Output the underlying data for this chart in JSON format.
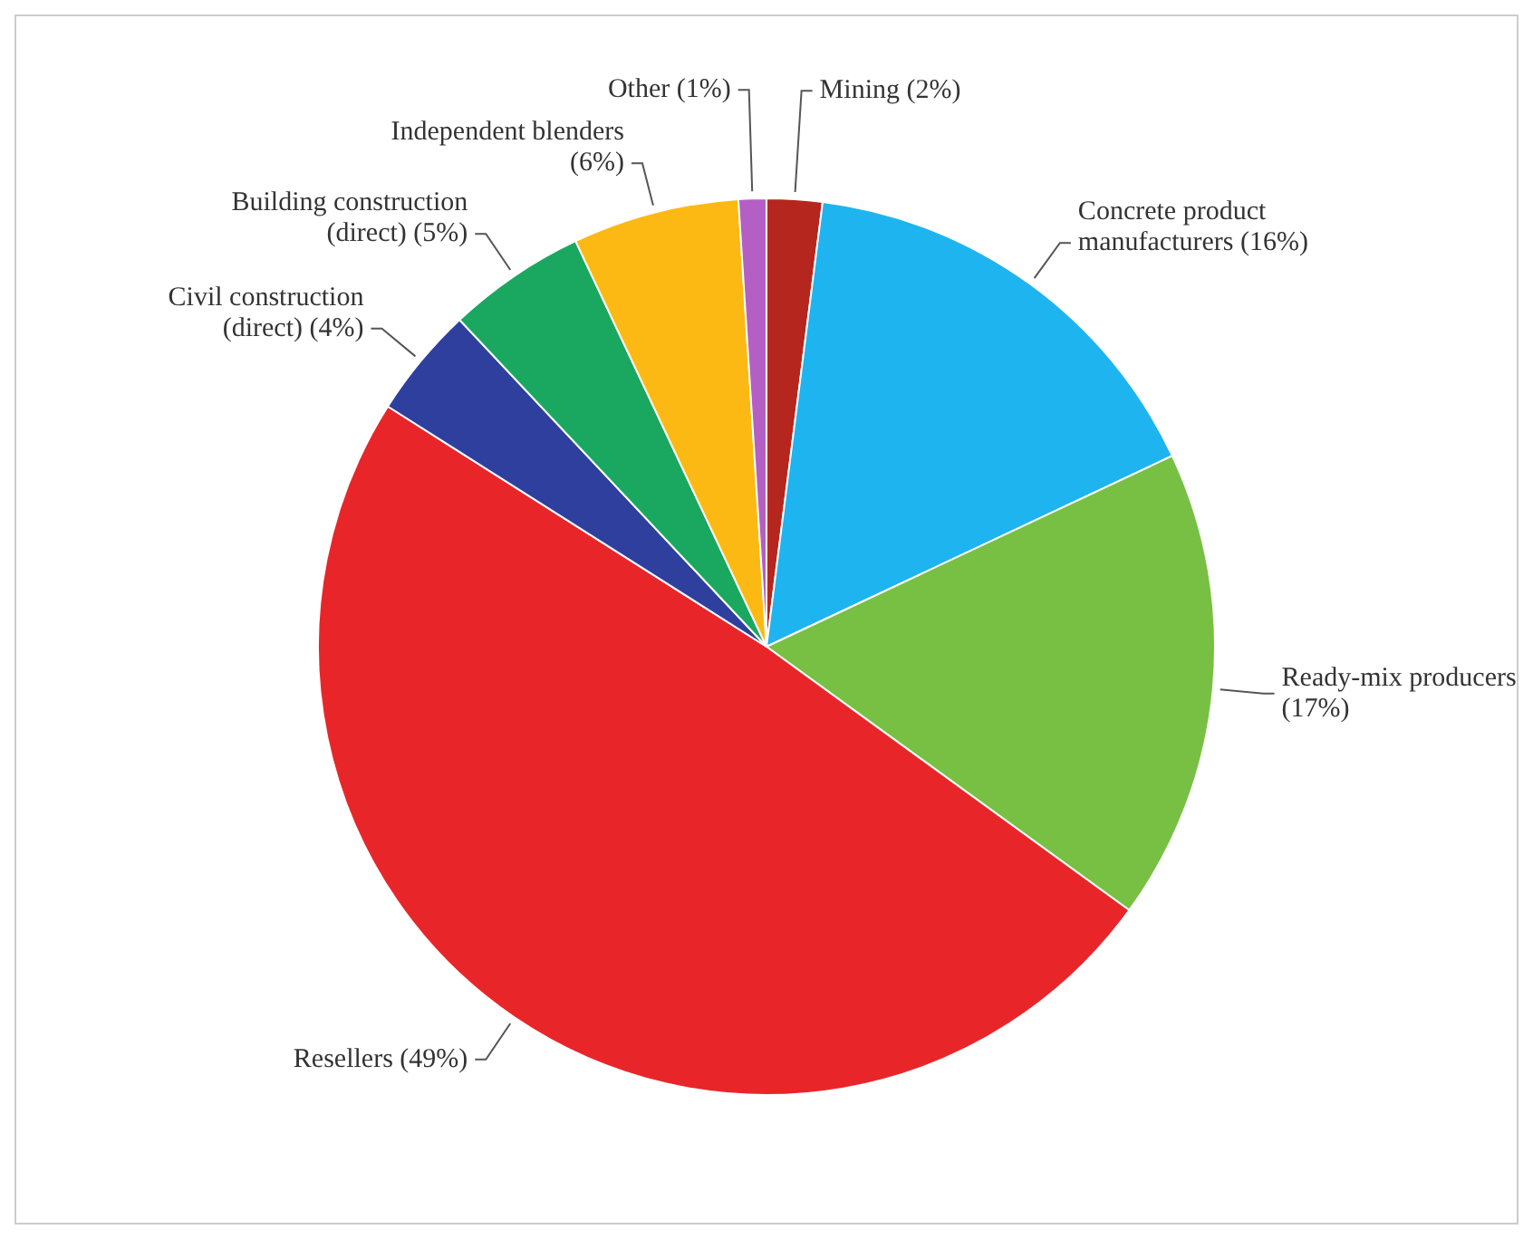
{
  "chart_data": {
    "type": "pie",
    "categories": [
      "Mining",
      "Concrete product manufacturers",
      "Ready-mix producers",
      "Resellers",
      "Civil construction (direct)",
      "Building construction (direct)",
      "Independent blenders",
      "Other"
    ],
    "values": [
      2,
      16,
      17,
      49,
      4,
      5,
      6,
      1
    ],
    "colors": [
      "#b5261e",
      "#1eb4ef",
      "#78c043",
      "#e8262a",
      "#2e3f9e",
      "#1aa860",
      "#fdb913",
      "#b45fc4"
    ],
    "value_labels": [
      "(2%)",
      "(16%)",
      "(17%)",
      "(49%)",
      "(4%)",
      "(5%)",
      "(6%)",
      "(1%)"
    ],
    "legend": false
  }
}
